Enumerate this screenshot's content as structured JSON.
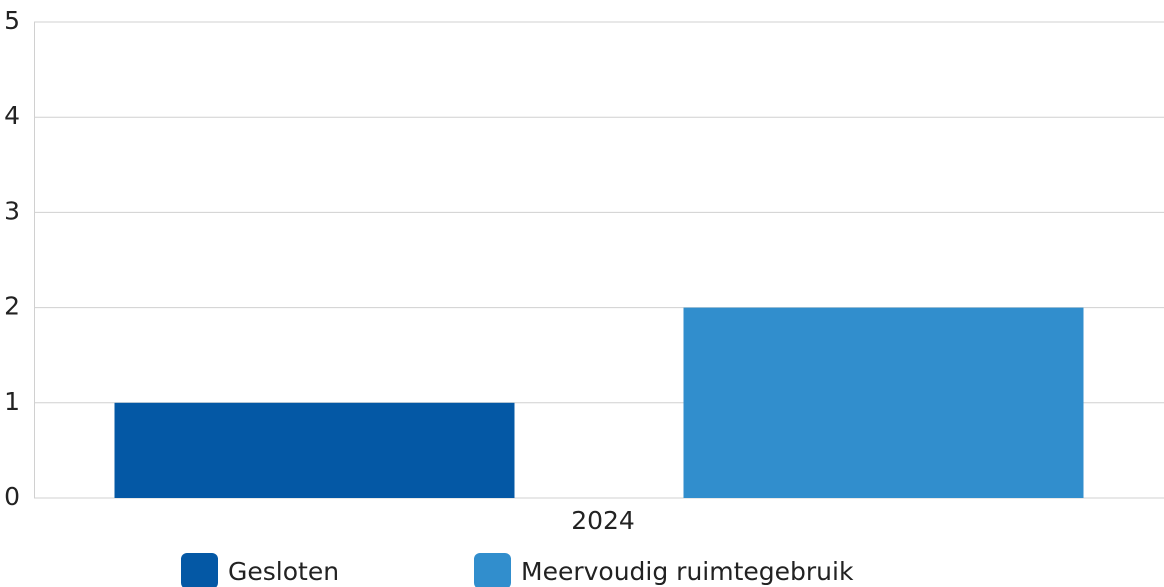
{
  "chart_data": {
    "type": "bar",
    "categories": [
      "2024"
    ],
    "series": [
      {
        "name": "Gesloten",
        "color": "#0458a5",
        "values": [
          1
        ]
      },
      {
        "name": "Meervoudig ruimtegebruik",
        "color": "#318ecd",
        "values": [
          2
        ]
      }
    ],
    "ylim": [
      0,
      5
    ],
    "yticks": [
      0,
      1,
      2,
      3,
      4,
      5
    ],
    "grid": true,
    "legend": "bottom"
  }
}
